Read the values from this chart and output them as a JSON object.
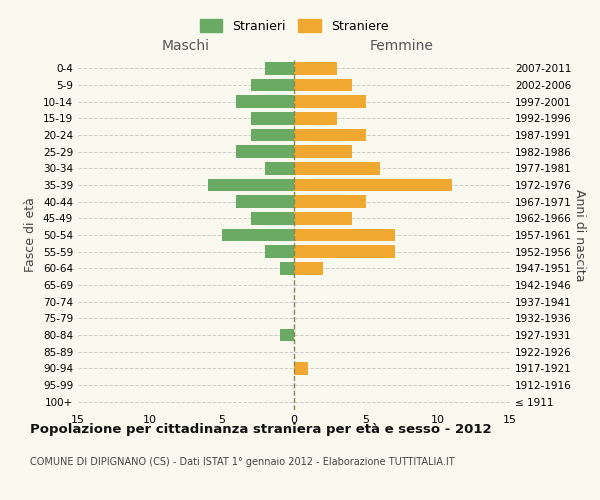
{
  "age_groups": [
    "100+",
    "95-99",
    "90-94",
    "85-89",
    "80-84",
    "75-79",
    "70-74",
    "65-69",
    "60-64",
    "55-59",
    "50-54",
    "45-49",
    "40-44",
    "35-39",
    "30-34",
    "25-29",
    "20-24",
    "15-19",
    "10-14",
    "5-9",
    "0-4"
  ],
  "birth_years": [
    "≤ 1911",
    "1912-1916",
    "1917-1921",
    "1922-1926",
    "1927-1931",
    "1932-1936",
    "1937-1941",
    "1942-1946",
    "1947-1951",
    "1952-1956",
    "1957-1961",
    "1962-1966",
    "1967-1971",
    "1972-1976",
    "1977-1981",
    "1982-1986",
    "1987-1991",
    "1992-1996",
    "1997-2001",
    "2002-2006",
    "2007-2011"
  ],
  "males": [
    0,
    0,
    0,
    0,
    1,
    0,
    0,
    0,
    1,
    2,
    5,
    3,
    4,
    6,
    2,
    4,
    3,
    3,
    4,
    3,
    2
  ],
  "females": [
    0,
    0,
    1,
    0,
    0,
    0,
    0,
    0,
    2,
    7,
    7,
    4,
    5,
    11,
    6,
    4,
    5,
    3,
    5,
    4,
    3
  ],
  "male_color": "#6aaa64",
  "female_color": "#f0a830",
  "title": "Popolazione per cittadinanza straniera per età e sesso - 2012",
  "subtitle": "COMUNE DI DIPIGNANO (CS) - Dati ISTAT 1° gennaio 2012 - Elaborazione TUTTITALIA.IT",
  "legend_male": "Stranieri",
  "legend_female": "Straniere",
  "xlabel_left": "Maschi",
  "xlabel_right": "Femmine",
  "ylabel_left": "Fasce di età",
  "ylabel_right": "Anni di nascita",
  "xlim": 15,
  "background_color": "#f9f9f0",
  "grid_color": "#cccccc"
}
